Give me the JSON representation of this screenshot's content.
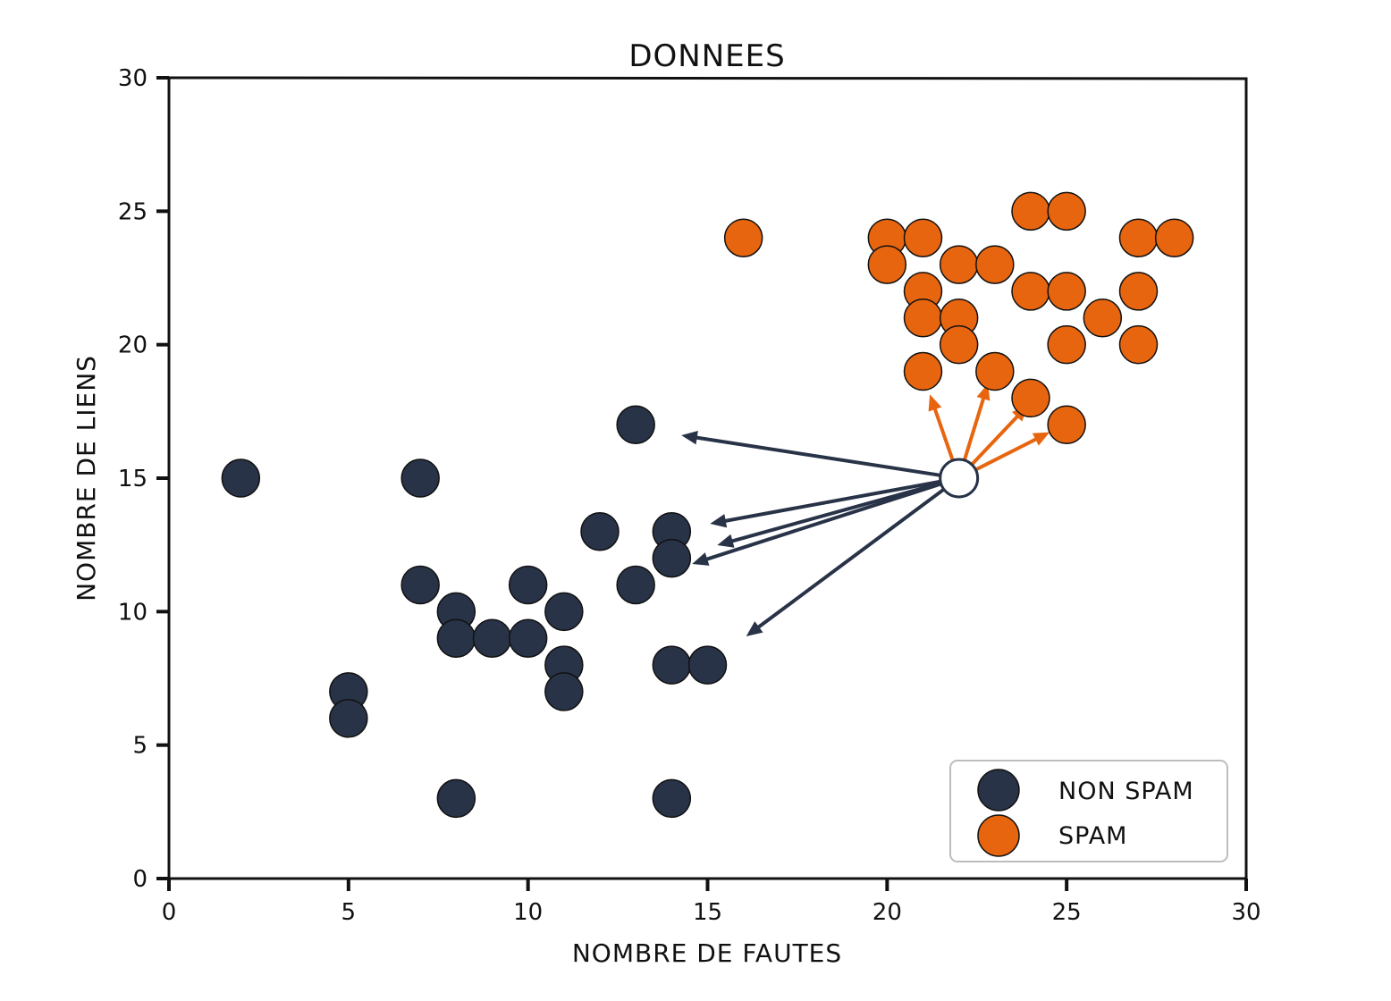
{
  "chart_data": {
    "type": "scatter",
    "title": "DONNEES",
    "xlabel": "NOMBRE DE FAUTES",
    "ylabel": "NOMBRE DE LIENS",
    "xlim": [
      0,
      30
    ],
    "ylim": [
      0,
      30
    ],
    "xticks": [
      0,
      5,
      10,
      15,
      20,
      25,
      30
    ],
    "yticks": [
      0,
      5,
      10,
      15,
      20,
      25,
      30
    ],
    "grid": false,
    "legend_position": "bottom-right",
    "series": [
      {
        "name": "NON SPAM",
        "color": "#293348",
        "points": [
          [
            2,
            15
          ],
          [
            7,
            15
          ],
          [
            7,
            11
          ],
          [
            5,
            7
          ],
          [
            5,
            6
          ],
          [
            8,
            10
          ],
          [
            8,
            9
          ],
          [
            8,
            3
          ],
          [
            9,
            9
          ],
          [
            10,
            11
          ],
          [
            10,
            9
          ],
          [
            11,
            10
          ],
          [
            11,
            8
          ],
          [
            11,
            7
          ],
          [
            12,
            13
          ],
          [
            13,
            17
          ],
          [
            13,
            11
          ],
          [
            14,
            13
          ],
          [
            14,
            12
          ],
          [
            14,
            8
          ],
          [
            15,
            8
          ],
          [
            14,
            3
          ]
        ]
      },
      {
        "name": "SPAM",
        "color": "#E8650F",
        "points": [
          [
            16,
            24
          ],
          [
            20,
            24
          ],
          [
            20,
            23
          ],
          [
            21,
            24
          ],
          [
            21,
            22
          ],
          [
            21,
            21
          ],
          [
            21,
            19
          ],
          [
            22,
            23
          ],
          [
            22,
            21
          ],
          [
            22,
            20
          ],
          [
            23,
            23
          ],
          [
            23,
            19
          ],
          [
            24,
            25
          ],
          [
            24,
            22
          ],
          [
            24,
            18
          ],
          [
            25,
            25
          ],
          [
            25,
            22
          ],
          [
            25,
            20
          ],
          [
            25,
            17
          ],
          [
            26,
            21
          ],
          [
            27,
            24
          ],
          [
            27,
            22
          ],
          [
            27,
            20
          ],
          [
            28,
            24
          ]
        ]
      }
    ],
    "query_point": {
      "x": 22,
      "y": 15,
      "fill": "#ffffff",
      "stroke": "#293348"
    },
    "neighbor_arrows": {
      "NON SPAM": [
        [
          14.3,
          16.6
        ],
        [
          15.1,
          13.3
        ],
        [
          15.3,
          12.5
        ],
        [
          14.6,
          11.8
        ],
        [
          16.1,
          9.1
        ]
      ],
      "SPAM": [
        [
          21.2,
          18.1
        ],
        [
          22.8,
          18.5
        ],
        [
          23.9,
          17.7
        ],
        [
          24.5,
          16.7
        ]
      ]
    }
  }
}
